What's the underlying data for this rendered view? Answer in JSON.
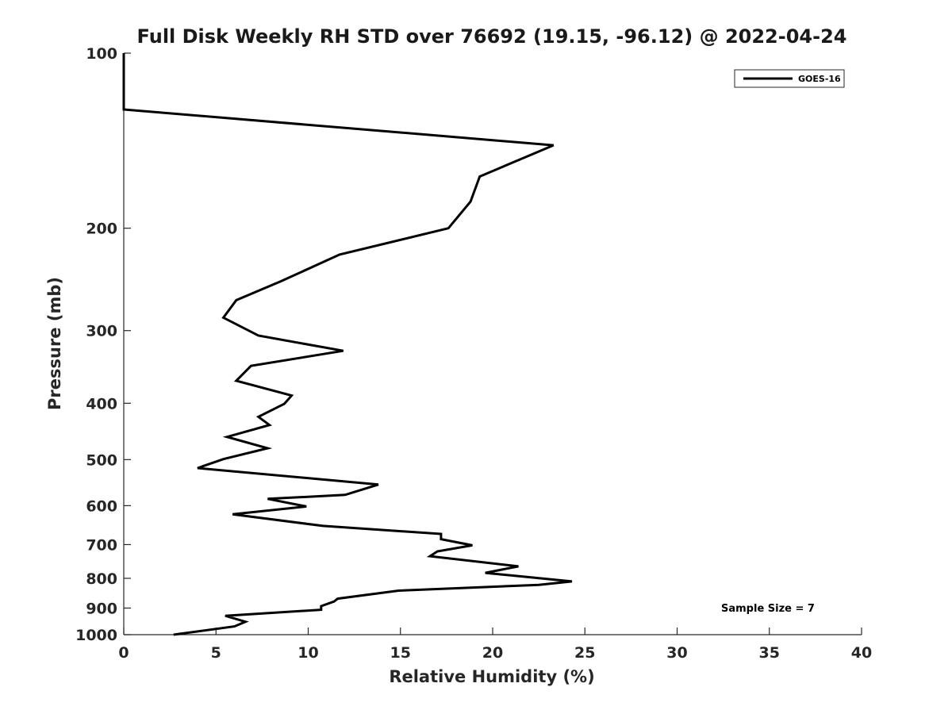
{
  "chart_data": {
    "type": "line",
    "title": "Full Disk Weekly RH STD over 76692 (19.15, -96.12) @ 2022-04-24",
    "xlabel": "Relative Humidity (%)",
    "ylabel": "Pressure (mb)",
    "xlim": [
      0,
      40
    ],
    "ylim": [
      100,
      1000
    ],
    "yscale": "log",
    "y_reversed": true,
    "grid": false,
    "legend_position": "top-right",
    "line_color": "#000000",
    "x_ticks": [
      0,
      5,
      10,
      15,
      20,
      25,
      30,
      35,
      40
    ],
    "y_ticks": [
      100,
      200,
      300,
      400,
      500,
      600,
      700,
      800,
      900,
      1000
    ],
    "annotation": "Sample Size = 7",
    "series": [
      {
        "name": "GOES-16",
        "points": [
          [
            0,
            100
          ],
          [
            0,
            103
          ],
          [
            0,
            109
          ],
          [
            0,
            115
          ],
          [
            0,
            122
          ],
          [
            0,
            125
          ],
          [
            23.3,
            144
          ],
          [
            19.3,
            163
          ],
          [
            18.8,
            180
          ],
          [
            17.6,
            200
          ],
          [
            11.7,
            222
          ],
          [
            8.5,
            247
          ],
          [
            6.1,
            266
          ],
          [
            5.4,
            285
          ],
          [
            7.3,
            306
          ],
          [
            11.9,
            325
          ],
          [
            6.9,
            345
          ],
          [
            6.1,
            366
          ],
          [
            9.1,
            388
          ],
          [
            8.7,
            401
          ],
          [
            7.3,
            422
          ],
          [
            7.9,
            436
          ],
          [
            5.6,
            457
          ],
          [
            7.8,
            478
          ],
          [
            5.4,
            499
          ],
          [
            4.0,
            517
          ],
          [
            13.8,
            552
          ],
          [
            12.0,
            575
          ],
          [
            7.8,
            584
          ],
          [
            9.9,
            602
          ],
          [
            5.9,
            621
          ],
          [
            10.8,
            650
          ],
          [
            17.2,
            671
          ],
          [
            17.2,
            685
          ],
          [
            18.9,
            702
          ],
          [
            17.0,
            719
          ],
          [
            16.6,
            733
          ],
          [
            21.4,
            763
          ],
          [
            19.6,
            783
          ],
          [
            24.3,
            810
          ],
          [
            22.5,
            821
          ],
          [
            14.9,
            840
          ],
          [
            11.6,
            867
          ],
          [
            11.4,
            877
          ],
          [
            10.7,
            893
          ],
          [
            10.7,
            906
          ],
          [
            5.5,
            928
          ],
          [
            6.6,
            950
          ],
          [
            6.0,
            968
          ],
          [
            2.7,
            1000
          ]
        ]
      }
    ]
  }
}
